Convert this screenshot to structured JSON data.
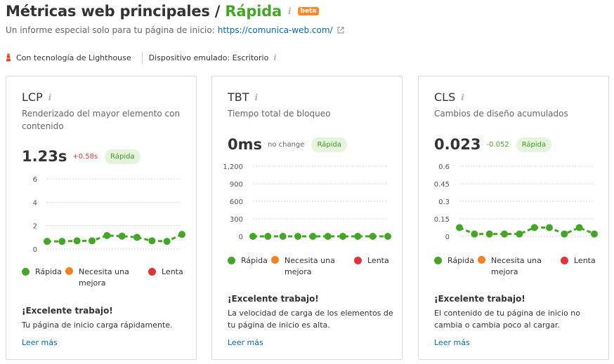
{
  "header": {
    "title_prefix": "Métricas web principales / ",
    "title_status": "Rápida",
    "badge": "beta",
    "subtitle_text": "Un informe especial solo para tu página de inicio:",
    "subtitle_link": "https://comunica-web.com/"
  },
  "meta": {
    "powered_by": "Con tecnología de Lighthouse",
    "device": "Dispositivo emulado: Escritorio"
  },
  "colors": {
    "fast": "#45a528",
    "needs_improvement": "#f58220",
    "slow": "#e3313a",
    "link": "#0a69ae"
  },
  "legend": {
    "fast": "Rápida",
    "needs_improvement": "Necesita una mejora",
    "slow": "Lenta"
  },
  "cards": [
    {
      "name": "LCP",
      "description": "Renderizado del mayor elemento con contenido",
      "value": "1.23s",
      "delta": "+0.58s",
      "status": "Rápida",
      "message_title": "¡Excelente trabajo!",
      "message_body": "Tu página de inicio carga rápidamente.",
      "read_more": "Leer más"
    },
    {
      "name": "TBT",
      "description": "Tiempo total de bloqueo",
      "value": "0ms",
      "delta": "no change",
      "status": "Rápida",
      "message_title": "¡Excelente trabajo!",
      "message_body": "La velocidad de carga de los elementos de tu página de inicio es alta.",
      "read_more": "Leer más"
    },
    {
      "name": "CLS",
      "description": "Cambios de diseño acumulados",
      "value": "0.023",
      "delta": "-0.052",
      "status": "Rápida",
      "message_title": "¡Excelente trabajo!",
      "message_body": "El contenido de tu página de inicio no cambia o cambia poco al cargar.",
      "read_more": "Leer más"
    }
  ],
  "chart_data": [
    {
      "type": "line",
      "metric": "LCP",
      "ylim": [
        0,
        6
      ],
      "yticks": [
        "0",
        "2",
        "4",
        "6"
      ],
      "values": [
        0.65,
        0.65,
        0.7,
        0.7,
        1.15,
        1.1,
        1.0,
        0.7,
        0.65,
        1.25
      ],
      "color": "#45a528"
    },
    {
      "type": "line",
      "metric": "TBT",
      "ylim": [
        0,
        1200
      ],
      "yticks": [
        "0",
        "300",
        "600",
        "900",
        "1,200"
      ],
      "values": [
        0,
        0,
        0,
        0,
        0,
        0,
        0,
        0,
        0,
        0
      ],
      "color": "#45a528"
    },
    {
      "type": "line",
      "metric": "CLS",
      "ylim": [
        0,
        0.6
      ],
      "yticks": [
        "0",
        "0.15",
        "0.3",
        "0.45",
        "0.6"
      ],
      "values": [
        0.075,
        0.02,
        0.02,
        0.02,
        0.02,
        0.075,
        0.075,
        0.02,
        0.075,
        0.02
      ],
      "color": "#45a528"
    }
  ]
}
